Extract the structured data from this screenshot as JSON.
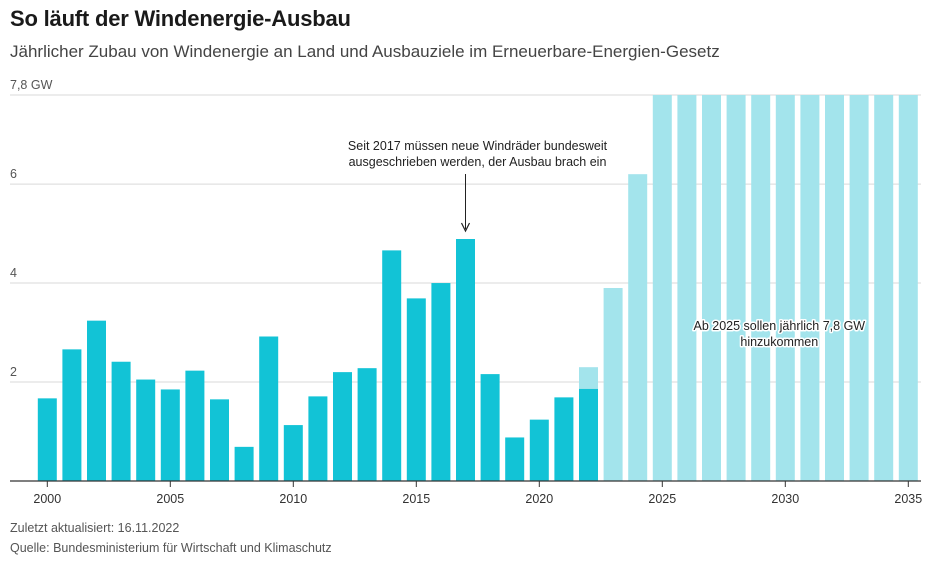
{
  "header": {
    "title": "So läuft der Windenergie-Ausbau",
    "subtitle": "Jährlicher Zubau von Windenergie an Land und Ausbauziele im Erneuerbare-Energien-Gesetz"
  },
  "footer": {
    "updated": "Zuletzt aktualisiert: 16.11.2022",
    "source": "Quelle: Bundesministerium für Wirtschaft und Klimaschutz"
  },
  "colors": {
    "actual": "#12c3d6",
    "target": "#a3e4ec",
    "grid": "#d9d9d9",
    "axis": "#333333"
  },
  "chart_data": {
    "type": "bar",
    "x": [
      2000,
      2001,
      2002,
      2003,
      2004,
      2005,
      2006,
      2007,
      2008,
      2009,
      2010,
      2011,
      2012,
      2013,
      2014,
      2015,
      2016,
      2017,
      2018,
      2019,
      2020,
      2021,
      2022,
      2023,
      2024,
      2025,
      2026,
      2027,
      2028,
      2029,
      2030,
      2031,
      2032,
      2033,
      2034,
      2035
    ],
    "series": [
      {
        "key": "actual",
        "values": [
          1.67,
          2.66,
          3.24,
          2.41,
          2.05,
          1.85,
          2.23,
          1.65,
          0.69,
          2.92,
          1.13,
          1.71,
          2.2,
          2.28,
          4.66,
          3.69,
          4.0,
          4.89,
          2.16,
          0.88,
          1.24,
          1.69,
          1.86,
          null,
          null,
          null,
          null,
          null,
          null,
          null,
          null,
          null,
          null,
          null,
          null,
          null
        ]
      },
      {
        "key": "target",
        "values": [
          null,
          null,
          null,
          null,
          null,
          null,
          null,
          null,
          null,
          null,
          null,
          null,
          null,
          null,
          null,
          null,
          null,
          null,
          null,
          null,
          null,
          null,
          2.3,
          3.9,
          6.2,
          7.8,
          7.8,
          7.8,
          7.8,
          7.8,
          7.8,
          7.8,
          7.8,
          7.8,
          7.8,
          7.8
        ]
      }
    ],
    "ylim": [
      0,
      7.8
    ],
    "yticks": [
      {
        "value": 2,
        "label": "2"
      },
      {
        "value": 4,
        "label": "4"
      },
      {
        "value": 6,
        "label": "6"
      },
      {
        "value": 7.8,
        "label": "7,8 GW"
      }
    ],
    "xticks": [
      2000,
      2005,
      2010,
      2015,
      2020,
      2025,
      2030,
      2035
    ],
    "grid": true,
    "annotations": [
      {
        "year": 2017,
        "lines": [
          "Seit 2017 müssen neue Windräder bundesweit",
          "ausgeschrieben werden, der Ausbau brach ein"
        ],
        "arrow": true
      },
      {
        "year": 2030,
        "lines": [
          "Ab 2025 sollen jährlich 7,8 GW",
          "hinzukommen"
        ],
        "arrow": false
      }
    ]
  }
}
